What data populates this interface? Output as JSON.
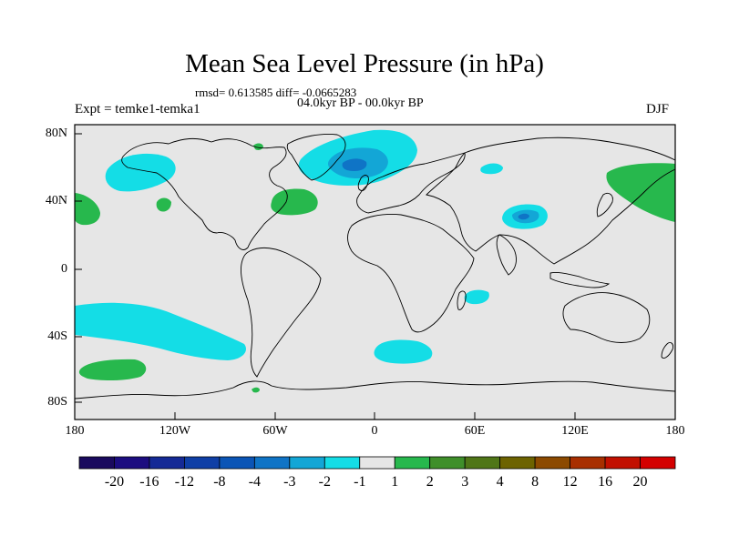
{
  "header": {
    "title": "Mean Sea Level Pressure (in hPa)",
    "stats": "rmsd= 0.613585  diff= -0.0665283",
    "period": "04.0kyr BP - 00.0kyr BP",
    "experiment": "Expt = temke1-temka1",
    "season": "DJF"
  },
  "map": {
    "lat_labels": [
      "80N",
      "40N",
      "0",
      "40S",
      "80S"
    ],
    "lon_labels": [
      "180",
      "120W",
      "60W",
      "0",
      "60E",
      "120E",
      "180"
    ],
    "land_outline_color": "#000000",
    "background_color": "#e6e6e6"
  },
  "colorbar": {
    "labels": [
      "-20",
      "-16",
      "-12",
      "-8",
      "-4",
      "-3",
      "-2",
      "-1",
      "1",
      "2",
      "3",
      "4",
      "8",
      "12",
      "16",
      "20"
    ],
    "colors": [
      "#1a0a5e",
      "#1c0d80",
      "#152a96",
      "#0f3fa6",
      "#0b55b6",
      "#0f74c6",
      "#13a6d6",
      "#14dde6",
      "#e6e6e6",
      "#27b84d",
      "#3f8f2a",
      "#4f7617",
      "#6d6300",
      "#8c4a00",
      "#a82f00",
      "#c21000",
      "#d40000"
    ]
  }
}
